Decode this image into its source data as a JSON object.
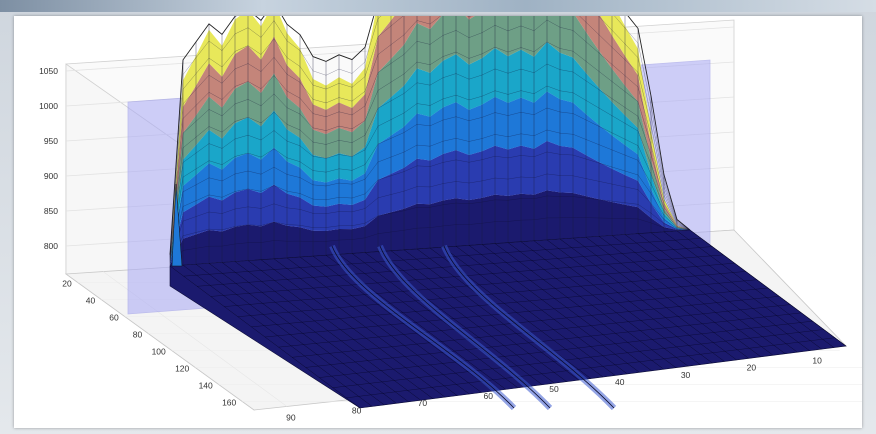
{
  "chart_data": {
    "type": "surface3d",
    "title": "",
    "xlabel": "",
    "ylabel": "",
    "zlabel": "",
    "z_ticks": [
      "1050",
      "1000",
      "950",
      "900",
      "850",
      "800"
    ],
    "y_ticks": [
      "20",
      "40",
      "60",
      "80",
      "100",
      "120",
      "140",
      "160"
    ],
    "x_ticks": [
      "90",
      "80",
      "70",
      "60",
      "50",
      "40",
      "30",
      "20",
      "10"
    ],
    "zlim": [
      760,
      1060
    ],
    "ylim": [
      10,
      170
    ],
    "xlim": [
      5,
      95
    ],
    "grid": true,
    "plane": {
      "description_color": "#a9a9f5",
      "opacity": 0.55
    },
    "colormap": [
      "#1b1a6e",
      "#2a3cb0",
      "#1e78d8",
      "#1aa6c9",
      "#6e9f86",
      "#c4857a",
      "#e8e85a"
    ],
    "ridge_profile_x": [
      90,
      88,
      86,
      84,
      82,
      80,
      78,
      76,
      74,
      72,
      70,
      68,
      66,
      64,
      62,
      60,
      58,
      56,
      54,
      52,
      50,
      48,
      46,
      44,
      42,
      40,
      38,
      36,
      34,
      32,
      30,
      28,
      26,
      24,
      22,
      20,
      18,
      16,
      14,
      12,
      10
    ],
    "ridge_profile_z": [
      790,
      960,
      975,
      990,
      980,
      995,
      1000,
      990,
      1005,
      985,
      975,
      955,
      950,
      955,
      950,
      960,
      1000,
      1010,
      1020,
      1035,
      1030,
      1040,
      1045,
      1035,
      1040,
      1048,
      1040,
      1045,
      1038,
      1050,
      1040,
      1035,
      1020,
      1005,
      990,
      975,
      960,
      900,
      830,
      790,
      780
    ],
    "floor_z": 780
  }
}
